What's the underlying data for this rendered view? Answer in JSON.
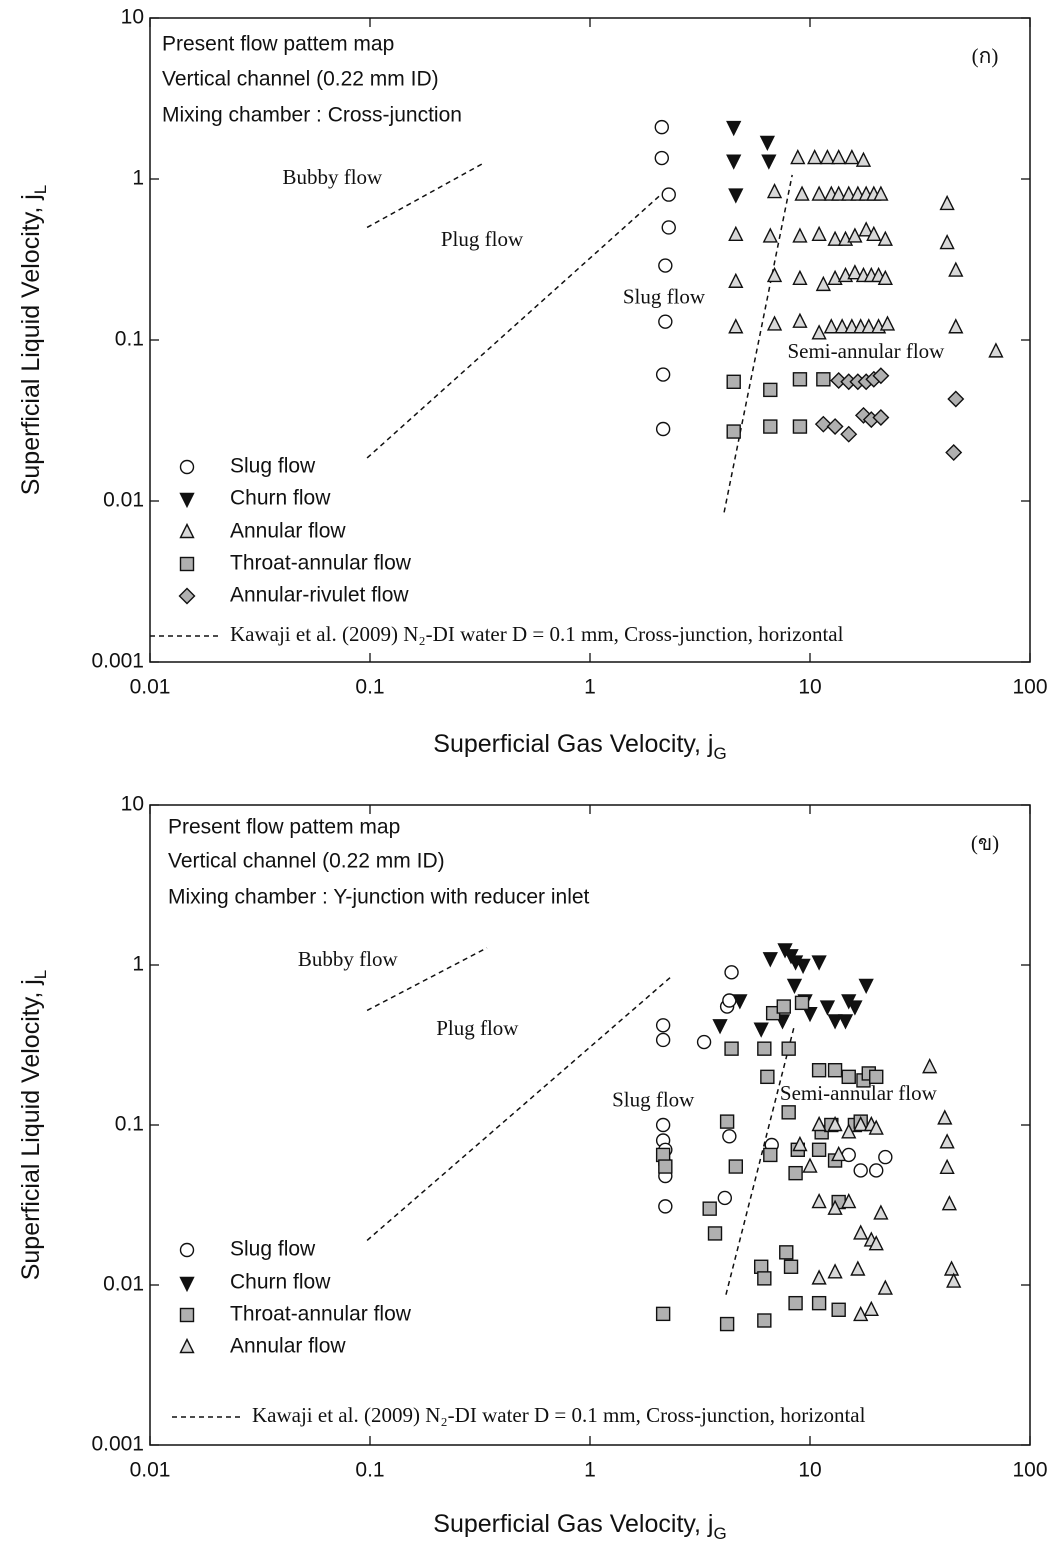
{
  "chart_data": [
    {
      "type": "scatter",
      "log_x": true,
      "log_y": true,
      "xlim": [
        0.01,
        100
      ],
      "ylim": [
        0.001,
        10
      ],
      "xticks": [
        0.01,
        0.1,
        1,
        10,
        100
      ],
      "yticks": [
        0.001,
        0.01,
        0.1,
        1,
        10
      ],
      "x_label": {
        "text": "Superficial Gas Velocity, j",
        "sub": "G"
      },
      "y_label": {
        "text": "Superficial Liquid Velocity, j",
        "sub": "L"
      },
      "info": [
        "Present flow pattem map",
        "Vertical channel (0.22 mm ID)",
        "Mixing chamber : Cross-junction"
      ],
      "panel_label": "(ก)",
      "annotations": [
        {
          "text": "Bubby flow",
          "x": 0.04,
          "y": 1.0
        },
        {
          "text": "Plug flow",
          "x": 0.21,
          "y": 0.41
        },
        {
          "text": "Slug flow",
          "x": 1.41,
          "y": 0.18
        },
        {
          "text": "Semi-annular flow",
          "x": 7.9,
          "y": 0.083
        }
      ],
      "boundaries": [
        {
          "x": [
            0.097,
            0.33
          ],
          "y": [
            0.5,
            1.26
          ]
        },
        {
          "x": [
            0.097,
            2.1
          ],
          "y": [
            0.0185,
            0.8
          ]
        },
        {
          "x": [
            4.07,
            8.3
          ],
          "y": [
            0.0085,
            1.06
          ]
        }
      ],
      "boundary_label": "Kawaji et al. (2009) N₂-DI water  D = 0.1 mm, Cross-junction, horizontal",
      "series": [
        {
          "name": "Slug flow",
          "marker": "circle",
          "color": "#ffffff",
          "x": [
            2.12,
            2.12,
            2.28,
            2.28,
            2.2,
            2.2,
            2.15,
            2.15
          ],
          "y": [
            2.1,
            1.35,
            0.8,
            0.5,
            0.29,
            0.13,
            0.061,
            0.028
          ]
        },
        {
          "name": "Churn flow",
          "marker": "triangle-down",
          "color": "#111111",
          "x": [
            4.5,
            4.5,
            4.6,
            6.4,
            6.5
          ],
          "y": [
            2.1,
            1.3,
            0.8,
            1.7,
            1.3
          ]
        },
        {
          "name": "Annular flow",
          "marker": "triangle-up",
          "color": "#d8d8d8",
          "x": [
            4.6,
            4.6,
            4.6,
            6.9,
            6.6,
            6.9,
            6.9,
            8.8,
            10.5,
            12,
            13.5,
            15.5,
            17.5,
            9.2,
            11,
            12.5,
            13.5,
            15,
            16.5,
            18,
            19.5,
            21,
            9,
            11,
            13,
            14.5,
            16,
            18,
            19.5,
            22,
            9,
            11.5,
            13,
            14.5,
            16,
            17.5,
            19,
            20.5,
            22,
            9,
            11,
            12.5,
            14,
            15.5,
            17,
            18.5,
            20.5,
            22.5,
            42,
            42,
            46,
            46,
            70
          ],
          "y": [
            0.45,
            0.23,
            0.12,
            0.83,
            0.44,
            0.25,
            0.125,
            1.35,
            1.35,
            1.35,
            1.35,
            1.35,
            1.3,
            0.8,
            0.8,
            0.8,
            0.8,
            0.8,
            0.8,
            0.8,
            0.8,
            0.8,
            0.44,
            0.45,
            0.42,
            0.42,
            0.44,
            0.48,
            0.45,
            0.42,
            0.24,
            0.22,
            0.24,
            0.25,
            0.26,
            0.25,
            0.25,
            0.25,
            0.24,
            0.13,
            0.11,
            0.12,
            0.12,
            0.12,
            0.12,
            0.12,
            0.12,
            0.125,
            0.7,
            0.4,
            0.27,
            0.12,
            0.085
          ]
        },
        {
          "name": "Throat-annular flow",
          "marker": "square",
          "color": "#b0b0b0",
          "x": [
            4.5,
            6.6,
            9,
            11.5,
            4.5,
            6.6,
            9
          ],
          "y": [
            0.055,
            0.049,
            0.057,
            0.057,
            0.027,
            0.029,
            0.029
          ]
        },
        {
          "name": "Annular-rivulet flow",
          "marker": "diamond",
          "color": "#b0b0b0",
          "x": [
            13.5,
            15,
            16.5,
            18,
            19.5,
            21,
            11.5,
            13,
            15,
            17.5,
            19,
            21,
            46,
            45
          ],
          "y": [
            0.056,
            0.055,
            0.055,
            0.055,
            0.057,
            0.06,
            0.03,
            0.029,
            0.026,
            0.034,
            0.032,
            0.033,
            0.043,
            0.02
          ]
        }
      ]
    },
    {
      "type": "scatter",
      "log_x": true,
      "log_y": true,
      "xlim": [
        0.01,
        100
      ],
      "ylim": [
        0.001,
        10
      ],
      "xticks": [
        0.01,
        0.1,
        1,
        10,
        100
      ],
      "yticks": [
        0.001,
        0.01,
        0.1,
        1,
        10
      ],
      "x_label": {
        "text": "Superficial Gas Velocity, j",
        "sub": "G"
      },
      "y_label": {
        "text": "Superficial Liquid Velocity, j",
        "sub": "L"
      },
      "info": [
        "Present flow pattem map",
        "Vertical channel (0.22 mm ID)",
        "Mixing chamber : Y-junction with reducer inlet"
      ],
      "panel_label": "(ข)",
      "annotations": [
        {
          "text": "Bubby flow",
          "x": 0.047,
          "y": 1.06
        },
        {
          "text": "Plug flow",
          "x": 0.2,
          "y": 0.39
        },
        {
          "text": "Slug flow",
          "x": 1.26,
          "y": 0.14
        },
        {
          "text": "Semi-annular flow",
          "x": 7.3,
          "y": 0.154
        }
      ],
      "boundaries": [
        {
          "x": [
            0.097,
            0.34
          ],
          "y": [
            0.52,
            1.28
          ]
        },
        {
          "x": [
            0.097,
            2.35
          ],
          "y": [
            0.019,
            0.85
          ]
        },
        {
          "x": [
            4.15,
            8.5
          ],
          "y": [
            0.0087,
            0.42
          ]
        }
      ],
      "boundary_label": "Kawaji  et al. (2009) N₂-DI water  D = 0.1 mm, Cross-junction, horizontal",
      "series": [
        {
          "name": "Slug flow",
          "marker": "circle",
          "color": "#ffffff",
          "x": [
            2.15,
            2.15,
            2.15,
            2.15,
            2.2,
            2.2,
            2.2,
            2.2,
            3.3,
            4.2,
            4.4,
            4.3,
            4.1,
            4.3,
            6.7,
            15,
            17,
            20,
            22
          ],
          "y": [
            0.42,
            0.34,
            0.1,
            0.08,
            0.07,
            0.057,
            0.048,
            0.031,
            0.33,
            0.55,
            0.9,
            0.6,
            0.035,
            0.085,
            0.075,
            0.065,
            0.052,
            0.052,
            0.063
          ]
        },
        {
          "name": "Churn flow",
          "marker": "triangle-down",
          "color": "#111111",
          "x": [
            3.9,
            4.8,
            6.6,
            7.7,
            8.2,
            8.6,
            9.3,
            11,
            8.5,
            9.5,
            10,
            12,
            13,
            14.5,
            16,
            18,
            15,
            6,
            7.5
          ],
          "y": [
            0.42,
            0.6,
            1.1,
            1.25,
            1.15,
            1.05,
            1.0,
            1.05,
            0.75,
            0.6,
            0.5,
            0.55,
            0.45,
            0.45,
            0.55,
            0.75,
            0.6,
            0.4,
            0.45
          ]
        },
        {
          "name": "Throat-annular flow",
          "marker": "square",
          "color": "#b0b0b0",
          "x": [
            2.15,
            2.2,
            3.5,
            3.7,
            4.2,
            4.4,
            4.6,
            6.2,
            6.4,
            6.6,
            6.8,
            7.6,
            8,
            8,
            8.6,
            8.8,
            9.2,
            11,
            11,
            11.3,
            12.5,
            13,
            13,
            15,
            16,
            17.5,
            17,
            18.5,
            20,
            13.5,
            6,
            6.2,
            7.8,
            8.2,
            2.15,
            4.2,
            6.2,
            8.6,
            11,
            13.5
          ],
          "y": [
            0.065,
            0.055,
            0.03,
            0.021,
            0.105,
            0.3,
            0.055,
            0.3,
            0.2,
            0.065,
            0.5,
            0.55,
            0.3,
            0.12,
            0.05,
            0.07,
            0.58,
            0.22,
            0.07,
            0.09,
            0.1,
            0.06,
            0.22,
            0.2,
            0.1,
            0.19,
            0.105,
            0.21,
            0.2,
            0.033,
            0.013,
            0.011,
            0.016,
            0.013,
            0.0066,
            0.0057,
            0.006,
            0.0077,
            0.0077,
            0.007
          ]
        },
        {
          "name": "Annular flow",
          "marker": "triangle-up",
          "color": "#d8d8d8",
          "x": [
            11,
            13,
            15,
            17,
            19,
            20,
            11,
            13,
            15,
            17,
            19,
            20,
            21,
            11,
            13,
            16.5,
            17,
            19,
            22,
            35,
            41,
            42,
            42,
            43,
            44,
            45,
            9,
            10,
            13.5
          ],
          "y": [
            0.1,
            0.1,
            0.09,
            0.1,
            0.1,
            0.095,
            0.033,
            0.03,
            0.033,
            0.021,
            0.019,
            0.018,
            0.028,
            0.011,
            0.012,
            0.0125,
            0.0065,
            0.007,
            0.0095,
            0.23,
            0.11,
            0.078,
            0.054,
            0.032,
            0.0125,
            0.0105,
            0.075,
            0.055,
            0.065
          ]
        }
      ]
    }
  ]
}
